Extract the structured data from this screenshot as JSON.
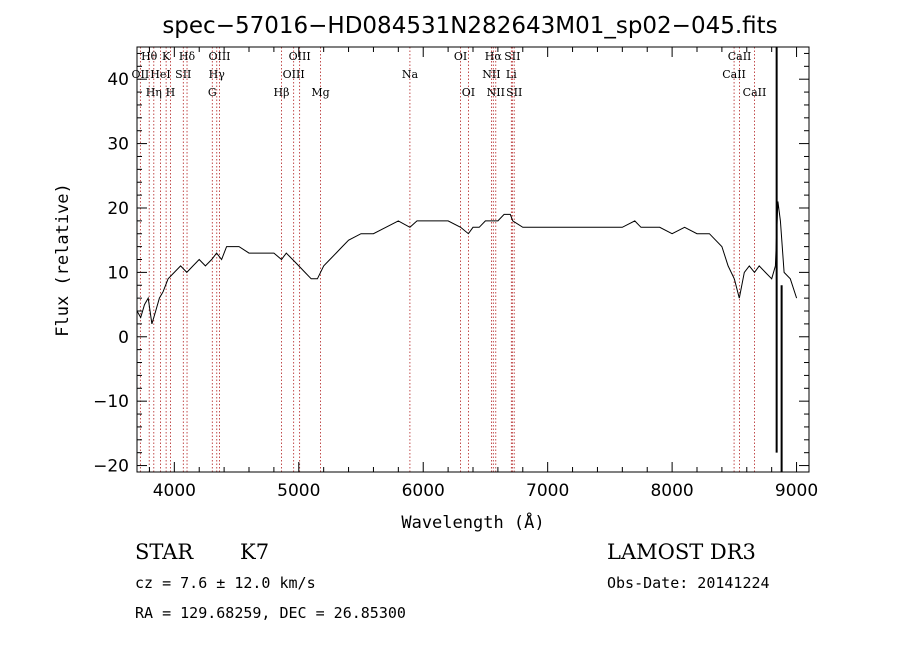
{
  "chart_data": {
    "type": "line",
    "title": "spec−57016−HD084531N282643M01_sp02−045.fits",
    "xlabel": "Wavelength (Å)",
    "ylabel": "Flux (relative)",
    "xlim": [
      3700,
      9100
    ],
    "ylim": [
      -21,
      45
    ],
    "x_ticks": [
      4000,
      5000,
      6000,
      7000,
      8000,
      9000
    ],
    "x_tick_labels": [
      "4000",
      "5000",
      "6000",
      "7000",
      "8000",
      "9000"
    ],
    "y_ticks": [
      -20,
      -10,
      0,
      10,
      20,
      30,
      40
    ],
    "y_tick_labels": [
      "−20",
      "−10",
      "0",
      "10",
      "20",
      "30",
      "40"
    ],
    "grid": false,
    "legend": "none",
    "line_color": "#000000",
    "marker_color": "#b22222",
    "series": [
      {
        "x": [
          3700,
          3730,
          3760,
          3790,
          3820,
          3850,
          3880,
          3910,
          3950,
          4000,
          4050,
          4100,
          4150,
          4200,
          4250,
          4300,
          4340,
          4380,
          4420,
          4470,
          4520,
          4600,
          4700,
          4800,
          4861,
          4900,
          4950,
          5000,
          5050,
          5100,
          5150,
          5200,
          5250,
          5300,
          5350,
          5400,
          5500,
          5600,
          5700,
          5800,
          5893,
          5950,
          6000,
          6100,
          6200,
          6300,
          6363,
          6400,
          6450,
          6500,
          6563,
          6600,
          6650,
          6700,
          6720,
          6800,
          6900,
          7000,
          7100,
          7200,
          7300,
          7400,
          7500,
          7600,
          7700,
          7750,
          7800,
          7900,
          8000,
          8100,
          8200,
          8300,
          8400,
          8450,
          8500,
          8540,
          8580,
          8620,
          8662,
          8700,
          8750,
          8800,
          8830,
          8850,
          8870,
          8900,
          8950,
          9000
        ],
        "y": [
          4,
          3,
          5,
          6,
          2,
          4,
          6,
          7,
          9,
          10,
          11,
          10,
          11,
          12,
          11,
          12,
          13,
          12,
          14,
          14,
          14,
          13,
          13,
          13,
          12,
          13,
          12,
          11,
          10,
          9,
          9,
          11,
          12,
          13,
          14,
          15,
          16,
          16,
          17,
          18,
          17,
          18,
          18,
          18,
          18,
          17,
          16,
          17,
          17,
          18,
          18,
          18,
          19,
          19,
          18,
          17,
          17,
          17,
          17,
          17,
          17,
          17,
          17,
          17,
          18,
          17,
          17,
          17,
          16,
          17,
          16,
          16,
          14,
          11,
          9,
          6,
          10,
          11,
          10,
          11,
          10,
          9,
          11,
          21,
          18,
          10,
          9,
          6
        ]
      }
    ],
    "annotations": {
      "spike": {
        "x": 8840,
        "y_top": 45,
        "y_bottom": -18
      },
      "dip": {
        "x": 8880,
        "y_top": 8,
        "y_bottom": -21
      }
    },
    "spectral_lines": [
      {
        "label": "Hθ",
        "wavelength": 3798,
        "row": 0
      },
      {
        "label": "OII",
        "wavelength": 3727,
        "row": 1
      },
      {
        "label": "Hη",
        "wavelength": 3835,
        "row": 2
      },
      {
        "label": "HeI",
        "wavelength": 3889,
        "row": 1
      },
      {
        "label": "K",
        "wavelength": 3934,
        "row": 0
      },
      {
        "label": "H",
        "wavelength": 3969,
        "row": 2
      },
      {
        "label": "SII",
        "wavelength": 4072,
        "row": 1
      },
      {
        "label": "Hδ",
        "wavelength": 4102,
        "row": 0
      },
      {
        "label": "G",
        "wavelength": 4305,
        "row": 2
      },
      {
        "label": "OIII",
        "wavelength": 4363,
        "row": 0
      },
      {
        "label": "Hγ",
        "wavelength": 4341,
        "row": 1
      },
      {
        "label": "Hβ",
        "wavelength": 4861,
        "row": 2
      },
      {
        "label": "OIII",
        "wavelength": 4959,
        "row": 1
      },
      {
        "label": "OIII",
        "wavelength": 5007,
        "row": 0
      },
      {
        "label": "Mg",
        "wavelength": 5175,
        "row": 2
      },
      {
        "label": "Na",
        "wavelength": 5893,
        "row": 1
      },
      {
        "label": "OI",
        "wavelength": 6300,
        "row": 0
      },
      {
        "label": "OI",
        "wavelength": 6363,
        "row": 2
      },
      {
        "label": "NII",
        "wavelength": 6548,
        "row": 1
      },
      {
        "label": "Hα",
        "wavelength": 6563,
        "row": 0
      },
      {
        "label": "NII",
        "wavelength": 6583,
        "row": 2
      },
      {
        "label": "Li",
        "wavelength": 6708,
        "row": 1
      },
      {
        "label": "SII",
        "wavelength": 6716,
        "row": 0
      },
      {
        "label": "SII",
        "wavelength": 6731,
        "row": 2
      },
      {
        "label": "CaII",
        "wavelength": 8498,
        "row": 1
      },
      {
        "label": "CaII",
        "wavelength": 8542,
        "row": 0
      },
      {
        "label": "CaII",
        "wavelength": 8662,
        "row": 2
      }
    ]
  },
  "info": {
    "object_class": "STAR",
    "subclass": "K7",
    "survey": "LAMOST DR3",
    "redshift": "cz = 7.6 ± 12.0 km/s",
    "obs_date": "Obs-Date: 20141224",
    "coords": "RA = 129.68259, DEC =  26.85300"
  }
}
